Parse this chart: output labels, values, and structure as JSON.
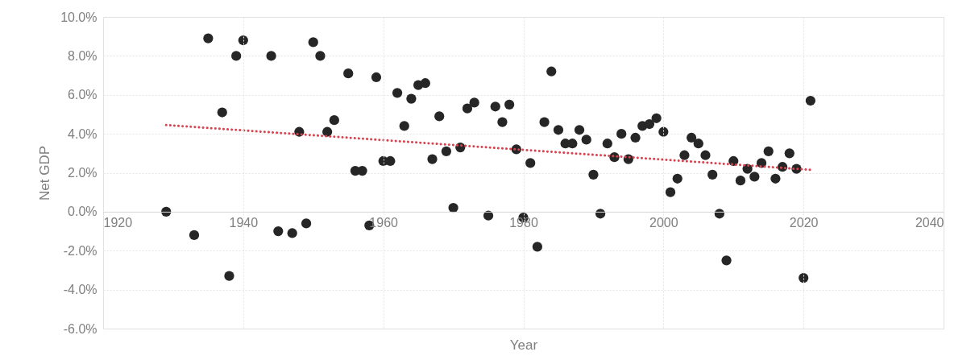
{
  "chart_data": {
    "type": "scatter",
    "xlabel": "Year",
    "ylabel": "Net GDP",
    "xlim": [
      1920,
      2040
    ],
    "xticks": [
      1920,
      1940,
      1960,
      1980,
      2000,
      2020,
      2040
    ],
    "ylim": [
      -6,
      10
    ],
    "yticks": [
      {
        "value": -6,
        "label": "-6.0%"
      },
      {
        "value": -4,
        "label": "-4.0%"
      },
      {
        "value": -2,
        "label": "-2.0%"
      },
      {
        "value": 0,
        "label": "0.0%"
      },
      {
        "value": 2,
        "label": "2.0%"
      },
      {
        "value": 4,
        "label": "4.0%"
      },
      {
        "value": 6,
        "label": "6.0%"
      },
      {
        "value": 8,
        "label": "8.0%"
      },
      {
        "value": 10,
        "label": "10.0%"
      }
    ],
    "grid": true,
    "marker": "circle",
    "series": [
      {
        "color": "#262626",
        "x": [
          1929,
          1933,
          1935,
          1937,
          1938,
          1939,
          1940,
          1944,
          1945,
          1947,
          1948,
          1949,
          1950,
          1951,
          1952,
          1953,
          1955,
          1956,
          1957,
          1958,
          1959,
          1960,
          1961,
          1962,
          1963,
          1964,
          1965,
          1966,
          1967,
          1968,
          1969,
          1970,
          1971,
          1972,
          1973,
          1975,
          1976,
          1977,
          1978,
          1979,
          1980,
          1981,
          1982,
          1983,
          1984,
          1985,
          1986,
          1987,
          1988,
          1989,
          1990,
          1991,
          1992,
          1993,
          1994,
          1995,
          1996,
          1997,
          1998,
          1999,
          2000,
          2001,
          2002,
          2003,
          2004,
          2005,
          2006,
          2007,
          2008,
          2009,
          2010,
          2011,
          2012,
          2013,
          2014,
          2015,
          2016,
          2017,
          2018,
          2019,
          2020,
          2021
        ],
        "values": [
          0.0,
          -1.2,
          8.9,
          5.1,
          -3.3,
          8.0,
          8.8,
          8.0,
          -1.0,
          -1.1,
          4.1,
          -0.6,
          8.7,
          8.0,
          4.1,
          4.7,
          7.1,
          2.1,
          2.1,
          -0.7,
          6.9,
          2.6,
          2.6,
          6.1,
          4.4,
          5.8,
          6.5,
          6.6,
          2.7,
          4.9,
          3.1,
          0.2,
          3.3,
          5.3,
          5.6,
          -0.2,
          5.4,
          4.6,
          5.5,
          3.2,
          -0.3,
          2.5,
          -1.8,
          4.6,
          7.2,
          4.2,
          3.5,
          3.5,
          4.2,
          3.7,
          1.9,
          -0.1,
          3.5,
          2.8,
          4.0,
          2.7,
          3.8,
          4.4,
          4.5,
          4.8,
          4.1,
          1.0,
          1.7,
          2.9,
          3.8,
          3.5,
          2.9,
          1.9,
          -0.1,
          -2.5,
          2.6,
          1.6,
          2.2,
          1.8,
          2.5,
          3.1,
          1.7,
          2.3,
          3.0,
          2.2,
          -3.4,
          5.7
        ]
      },
      {
        "type": "line",
        "color": "#d9434f",
        "line_style": "dotted",
        "marker": "none",
        "x": [
          1929,
          2021
        ],
        "values": [
          4.45,
          2.15
        ]
      }
    ]
  }
}
